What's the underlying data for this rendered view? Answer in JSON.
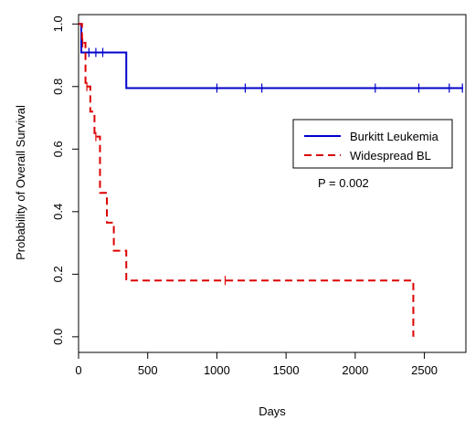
{
  "chart_data": {
    "type": "line",
    "title": "",
    "xlabel": "Days",
    "ylabel": "Probability of Overall Survival",
    "xlim": [
      0,
      2800
    ],
    "ylim": [
      -0.05,
      1.03
    ],
    "xticks": [
      0,
      500,
      1000,
      1500,
      2000,
      2500
    ],
    "yticks": [
      0.0,
      0.2,
      0.4,
      0.6,
      0.8,
      1.0
    ],
    "xtick_labels": [
      "0",
      "500",
      "1000",
      "1500",
      "2000",
      "2500"
    ],
    "ytick_labels": [
      "0.0",
      "0.2",
      "0.4",
      "0.6",
      "0.8",
      "1.0"
    ],
    "grid": false,
    "legend_position": "right",
    "annotation": "P = 0.002",
    "colors": {
      "burkitt": "#0000cc",
      "widespread": "#dd0000",
      "axis": "#000000"
    },
    "series": [
      {
        "name": "Burkitt Leukemia",
        "style": "solid",
        "color": "#0000cc",
        "steps": [
          [
            0,
            1.0
          ],
          [
            20,
            0.909
          ],
          [
            345,
            0.795
          ],
          [
            2780,
            0.795
          ]
        ],
        "censored": [
          [
            75,
            0.909
          ],
          [
            125,
            0.909
          ],
          [
            175,
            0.909
          ],
          [
            1000,
            0.795
          ],
          [
            1205,
            0.795
          ],
          [
            1325,
            0.795
          ],
          [
            2145,
            0.795
          ],
          [
            2460,
            0.795
          ],
          [
            2680,
            0.795
          ],
          [
            2775,
            0.795
          ]
        ]
      },
      {
        "name": "Widespread BL",
        "style": "dashed",
        "color": "#dd0000",
        "steps": [
          [
            0,
            1.0
          ],
          [
            25,
            0.94
          ],
          [
            50,
            0.8
          ],
          [
            85,
            0.72
          ],
          [
            115,
            0.64
          ],
          [
            155,
            0.46
          ],
          [
            205,
            0.365
          ],
          [
            255,
            0.275
          ],
          [
            345,
            0.18
          ],
          [
            2420,
            0.18
          ],
          [
            2420,
            0.0
          ]
        ],
        "censored": [
          [
            30,
            0.94
          ],
          [
            60,
            0.8
          ],
          [
            125,
            0.64
          ],
          [
            1060,
            0.18
          ]
        ]
      }
    ]
  }
}
